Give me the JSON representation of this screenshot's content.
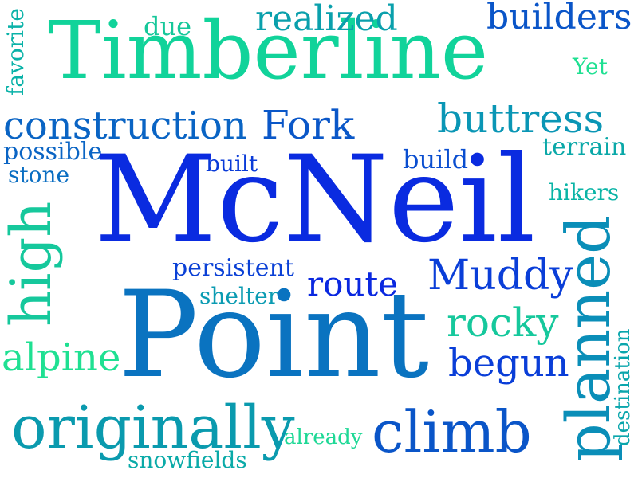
{
  "words": {
    "mcneil": {
      "text": "McNeil",
      "color": "#0a2be0"
    },
    "point": {
      "text": "Point",
      "color": "#0a73c0"
    },
    "timberline": {
      "text": "Timberline",
      "color": "#11d39a"
    },
    "construction": {
      "text": "construction",
      "color": "#0a64c4"
    },
    "fork": {
      "text": "Fork",
      "color": "#0a57c8"
    },
    "buttress": {
      "text": "buttress",
      "color": "#0a96b5"
    },
    "realized": {
      "text": "realized",
      "color": "#0aa0ac"
    },
    "builders": {
      "text": "builders",
      "color": "#0a55c8"
    },
    "due": {
      "text": "due",
      "color": "#16c79a"
    },
    "yet": {
      "text": "Yet",
      "color": "#1fe092"
    },
    "favorite": {
      "text": "favorite",
      "color": "#0ab2a8"
    },
    "possible": {
      "text": "possible",
      "color": "#0a64c4"
    },
    "stone": {
      "text": "stone",
      "color": "#0a6ec2"
    },
    "built": {
      "text": "built",
      "color": "#0a3bd8"
    },
    "build": {
      "text": "build",
      "color": "#0a4ed0"
    },
    "terrain": {
      "text": "terrain",
      "color": "#0aa8a8"
    },
    "hikers": {
      "text": "hikers",
      "color": "#0ab4a6"
    },
    "persistent": {
      "text": "persistent",
      "color": "#0a40d6"
    },
    "route": {
      "text": "route",
      "color": "#0a28e0"
    },
    "muddy": {
      "text": "Muddy",
      "color": "#0a3ed8"
    },
    "shelter": {
      "text": "shelter",
      "color": "#0a9bb2"
    },
    "rocky": {
      "text": "rocky",
      "color": "#16c89c"
    },
    "alpine": {
      "text": "alpine",
      "color": "#1fe092"
    },
    "begun": {
      "text": "begun",
      "color": "#0a3ed8"
    },
    "high": {
      "text": "high",
      "color": "#16c89c"
    },
    "planned": {
      "text": "planned",
      "color": "#0a8eb8"
    },
    "destination": {
      "text": "destination",
      "color": "#0aa6ac"
    },
    "originally": {
      "text": "originally",
      "color": "#0a9aae"
    },
    "already": {
      "text": "already",
      "color": "#1fd896"
    },
    "climb": {
      "text": "climb",
      "color": "#0a55c8"
    },
    "snowfields": {
      "text": "snowfields",
      "color": "#0aaaa8"
    }
  }
}
